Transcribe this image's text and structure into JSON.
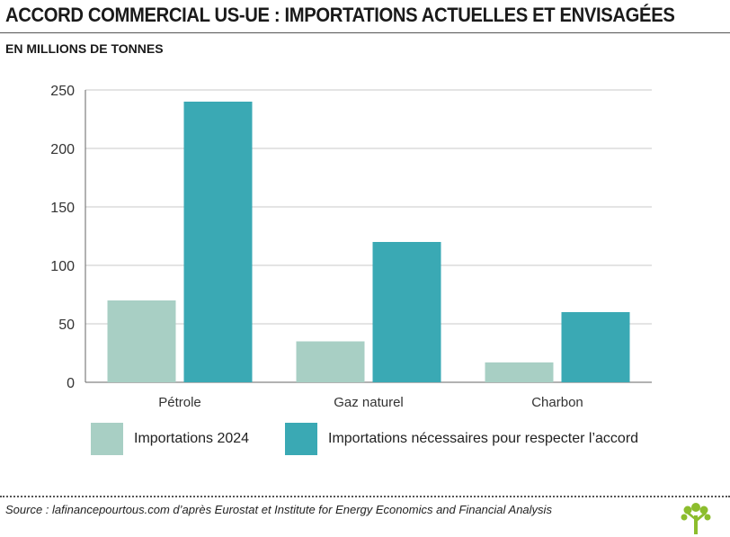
{
  "header": {
    "title": "ACCORD COMMERCIAL US-UE : IMPORTATIONS ACTUELLES ET ENVISAGÉES",
    "subtitle": "EN MILLIONS DE TONNES"
  },
  "chart_data": {
    "type": "bar",
    "categories": [
      "Pétrole",
      "Gaz naturel",
      "Charbon"
    ],
    "series": [
      {
        "name": "Importations 2024",
        "values": [
          70,
          35,
          17
        ],
        "color": "#a8cfc4"
      },
      {
        "name": "Importations nécessaires pour respecter l’accord",
        "values": [
          240,
          120,
          60
        ],
        "color": "#3aa9b4"
      }
    ],
    "ylim": [
      0,
      250
    ],
    "yticks": [
      0,
      50,
      100,
      150,
      200,
      250
    ],
    "grid": true,
    "legend_placement": "bottom"
  },
  "footer": {
    "source": "Source : lafinancepourtous.com d’après Eurostat et Institute for Energy Economics and Financial Analysis",
    "logo_icon": "tree-icon",
    "logo_color": "#8cbd2d"
  }
}
